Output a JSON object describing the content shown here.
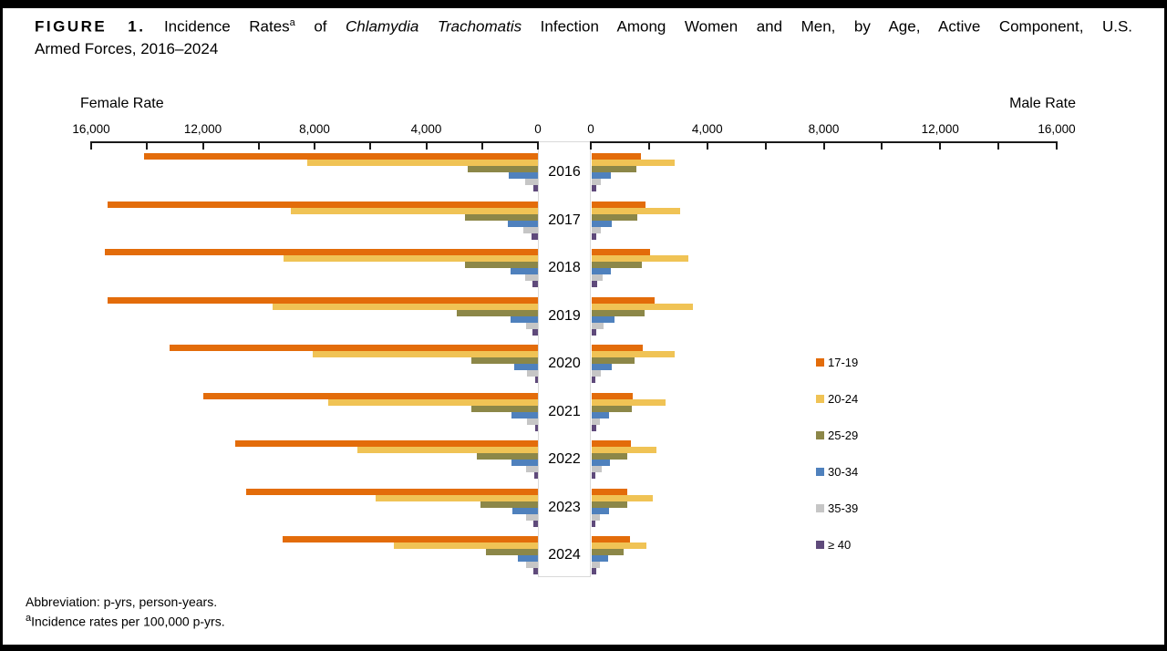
{
  "title": {
    "figure_label": "FIGURE 1.",
    "seg1": " Incidence Rates",
    "superscript": "a",
    "seg2": " of ",
    "italic": "Chlamydia Trachomatis",
    "seg3": " Infection Among Women and Men, by Age, Active Component, U.S.",
    "line2": "Armed Forces, 2016–2024"
  },
  "axes": {
    "female_label": "Female Rate",
    "male_label": "Male Rate"
  },
  "footnotes": {
    "line1": "Abbreviation: p-yrs, person-years.",
    "superscript": "a",
    "line2": "Incidence rates per 100,000 p-yrs."
  },
  "chart_data": {
    "type": "bar",
    "variant": "population-pyramid",
    "title": "Incidence Rates of Chlamydia Trachomatis Infection Among Women and Men, by Age, Active Component, U.S. Armed Forces, 2016–2024",
    "unit": "incidence rate per 100,000 p-yrs",
    "grid": false,
    "legend_position": "right",
    "categories": [
      "2016",
      "2017",
      "2018",
      "2019",
      "2020",
      "2021",
      "2022",
      "2023",
      "2024"
    ],
    "age_groups": [
      "17-19",
      "20-24",
      "25-29",
      "30-34",
      "35-39",
      "≥ 40"
    ],
    "colors": [
      "#E36C0A",
      "#F0C355",
      "#8C8748",
      "#4F81BD",
      "#C6C6C6",
      "#5F4A7B"
    ],
    "axis": {
      "min": 0,
      "max": 16000,
      "major_tick": 4000,
      "minor_tick": 2000,
      "female_tick_labels": [
        "16,000",
        "12,000",
        "8,000",
        "4,000",
        "0"
      ],
      "male_tick_labels": [
        "0",
        "4,000",
        "8,000",
        "12,000",
        "16,000"
      ]
    },
    "female_series": [
      {
        "name": "17-19",
        "values": [
          14100,
          15400,
          15500,
          15400,
          13200,
          12000,
          10850,
          10450,
          9150
        ]
      },
      {
        "name": "20-24",
        "values": [
          8250,
          8850,
          9100,
          9500,
          8050,
          7500,
          6450,
          5800,
          5150
        ]
      },
      {
        "name": "25-29",
        "values": [
          2500,
          2600,
          2600,
          2900,
          2400,
          2400,
          2200,
          2050,
          1850
        ]
      },
      {
        "name": "30-34",
        "values": [
          1050,
          1070,
          980,
          980,
          840,
          960,
          960,
          920,
          730
        ]
      },
      {
        "name": "35-39",
        "values": [
          460,
          520,
          460,
          440,
          380,
          380,
          440,
          410,
          430
        ]
      },
      {
        "name": "≥ 40",
        "values": [
          160,
          230,
          190,
          200,
          110,
          110,
          140,
          150,
          150
        ]
      }
    ],
    "male_series": [
      {
        "name": "17-19",
        "values": [
          1700,
          1860,
          2000,
          2170,
          1760,
          1400,
          1340,
          1210,
          1320
        ]
      },
      {
        "name": "20-24",
        "values": [
          2850,
          3040,
          3320,
          3480,
          2850,
          2550,
          2230,
          2100,
          1890
        ]
      },
      {
        "name": "25-29",
        "values": [
          1530,
          1580,
          1720,
          1820,
          1470,
          1390,
          1230,
          1210,
          1090
        ]
      },
      {
        "name": "30-34",
        "values": [
          660,
          690,
          670,
          770,
          690,
          610,
          620,
          590,
          550
        ]
      },
      {
        "name": "35-39",
        "values": [
          300,
          320,
          380,
          400,
          320,
          270,
          350,
          270,
          290
        ]
      },
      {
        "name": "≥ 40",
        "values": [
          150,
          170,
          200,
          170,
          140,
          150,
          140,
          140,
          150
        ]
      }
    ]
  }
}
